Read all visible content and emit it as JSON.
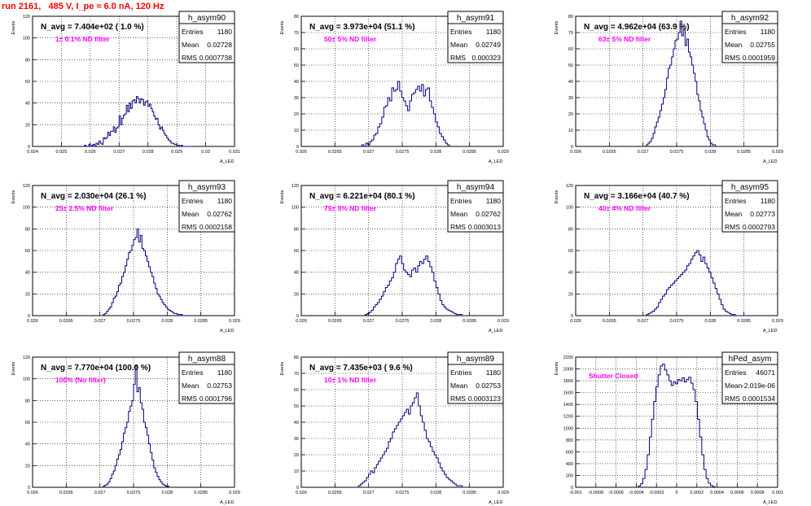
{
  "title": "run 2161,   485 V, I_pe ≈ 6.0 nA, 120 Hz",
  "colors": {
    "hist_line": "#000080",
    "title_red": "#ff0000",
    "magenta": "#ff00ff",
    "grid": "#000000"
  },
  "chart_data": [
    {
      "type": "histogram",
      "name": "h_asym90",
      "stats": {
        "entries": "1180",
        "mean": "0.02728",
        "rms": "0.0007738"
      },
      "label": "N_avg = 7.404e+02 ( 1.0 %)",
      "sublabel": "1± 0.1% ND filter",
      "ylabel": "Events",
      "xlabel": "A_LED",
      "xlim": [
        0.024,
        0.031
      ],
      "ylim": [
        0,
        120
      ],
      "xticks": [
        "0.024",
        "0.025",
        "0.026",
        "0.027",
        "0.028",
        "0.029",
        "0.03",
        "0.031"
      ],
      "yticks": [
        "0",
        "20",
        "40",
        "60",
        "80",
        "100",
        "120"
      ],
      "bins": [
        0.0255,
        0.0295
      ],
      "values": [
        0,
        0,
        0,
        0,
        0,
        0,
        1,
        0,
        0,
        2,
        0,
        1,
        2,
        0,
        3,
        2,
        5,
        3,
        2,
        8,
        7,
        8,
        13,
        10,
        14,
        14,
        18,
        13,
        17,
        18,
        28,
        20,
        26,
        29,
        30,
        38,
        32,
        40,
        35,
        42,
        43,
        40,
        46,
        44,
        40,
        44,
        43,
        38,
        41,
        42,
        37,
        39,
        35,
        32,
        28,
        25,
        26,
        20,
        16,
        18,
        15,
        12,
        10,
        8,
        6,
        5,
        3,
        3,
        2,
        2,
        1,
        1,
        0,
        1,
        0,
        0,
        0,
        0,
        0,
        0
      ]
    },
    {
      "type": "histogram",
      "name": "h_asym91",
      "stats": {
        "entries": "1180",
        "mean": "0.02749",
        "rms": "0.000323"
      },
      "label": "N_avg = 3.973e+04 (51.1 %)",
      "sublabel": "50± 5% ND filter",
      "ylabel": "Events",
      "xlabel": "A_LED",
      "xlim": [
        0.026,
        0.029
      ],
      "ylim": [
        0,
        80
      ],
      "xticks": [
        "0.026",
        "0.0265",
        "0.027",
        "0.0275",
        "0.028",
        "0.0285",
        "0.029"
      ],
      "yticks": [
        "0",
        "10",
        "20",
        "30",
        "40",
        "50",
        "60",
        "70",
        "80"
      ],
      "bins": [
        0.0269,
        0.0282
      ],
      "values": [
        1,
        0,
        2,
        1,
        3,
        4,
        7,
        8,
        12,
        14,
        18,
        24,
        25,
        30,
        28,
        36,
        34,
        35,
        40,
        34,
        30,
        28,
        25,
        22,
        28,
        32,
        33,
        35,
        37,
        34,
        38,
        31,
        35,
        36,
        28,
        24,
        20,
        15,
        12,
        8,
        6,
        4,
        2,
        1
      ]
    },
    {
      "type": "histogram",
      "name": "h_asym92",
      "stats": {
        "entries": "1180",
        "mean": "0.02755",
        "rms": "0.0001959"
      },
      "label": "N_avg = 4.962e+04 (63.9 %)",
      "sublabel": "63± 5% ND filter",
      "ylabel": "Events",
      "xlabel": "A_LED",
      "xlim": [
        0.026,
        0.029
      ],
      "ylim": [
        0,
        80
      ],
      "xticks": [
        "0.026",
        "0.0265",
        "0.027",
        "0.0275",
        "0.028",
        "0.0285",
        "0.029"
      ],
      "yticks": [
        "0",
        "10",
        "20",
        "30",
        "40",
        "50",
        "60",
        "70",
        "80"
      ],
      "bins": [
        0.02705,
        0.0281
      ],
      "values": [
        1,
        2,
        3,
        5,
        8,
        12,
        15,
        18,
        22,
        26,
        30,
        35,
        42,
        48,
        50,
        55,
        60,
        65,
        66,
        70,
        77,
        68,
        72,
        62,
        66,
        58,
        55,
        50,
        45,
        40,
        32,
        28,
        22,
        18,
        14,
        10,
        6,
        4,
        2,
        1,
        1,
        0
      ]
    },
    {
      "type": "histogram",
      "name": "h_asym93",
      "stats": {
        "entries": "1180",
        "mean": "0.02762",
        "rms": "0.0002158"
      },
      "label": "N_avg = 2.030e+04 (26.1 %)",
      "sublabel": "25± 2.5% ND filter",
      "ylabel": "Events",
      "xlabel": "A_LED",
      "xlim": [
        0.026,
        0.029
      ],
      "ylim": [
        0,
        120
      ],
      "xticks": [
        "0.026",
        "0.0265",
        "0.027",
        "0.0275",
        "0.028",
        "0.0285",
        "0.029"
      ],
      "yticks": [
        "0",
        "20",
        "40",
        "60",
        "80",
        "100",
        "120"
      ],
      "bins": [
        0.02705,
        0.0283
      ],
      "values": [
        1,
        2,
        4,
        6,
        8,
        12,
        16,
        18,
        22,
        28,
        30,
        36,
        40,
        46,
        52,
        58,
        60,
        65,
        70,
        72,
        80,
        68,
        74,
        62,
        60,
        55,
        50,
        45,
        40,
        36,
        30,
        25,
        20,
        18,
        15,
        12,
        10,
        8,
        6,
        5,
        4,
        3,
        2,
        2,
        1,
        1,
        1,
        0,
        0,
        0
      ]
    },
    {
      "type": "histogram",
      "name": "h_asym94",
      "stats": {
        "entries": "1180",
        "mean": "0.02762",
        "rms": "0.0003013"
      },
      "label": "N_avg = 6.221e+04 (80.1 %)",
      "sublabel": "79± 5% ND filter",
      "ylabel": "Events",
      "xlabel": "A_LED",
      "xlim": [
        0.026,
        0.029
      ],
      "ylim": [
        0,
        120
      ],
      "xticks": [
        "0.026",
        "0.0265",
        "0.027",
        "0.0275",
        "0.028",
        "0.0285",
        "0.029"
      ],
      "yticks": [
        "0",
        "20",
        "40",
        "60",
        "80",
        "100",
        "120"
      ],
      "bins": [
        0.02695,
        0.02845
      ],
      "values": [
        1,
        2,
        3,
        5,
        8,
        10,
        12,
        15,
        18,
        22,
        26,
        28,
        32,
        35,
        40,
        48,
        52,
        55,
        48,
        42,
        40,
        38,
        36,
        42,
        44,
        40,
        46,
        50,
        48,
        52,
        55,
        50,
        45,
        40,
        32,
        26,
        20,
        14,
        10,
        8,
        6,
        5,
        4,
        3,
        2,
        1,
        1,
        1,
        0,
        0
      ]
    },
    {
      "type": "histogram",
      "name": "h_asym95",
      "stats": {
        "entries": "1180",
        "mean": "0.02773",
        "rms": "0.0002793"
      },
      "label": "N_avg = 3.166e+04 (40.7 %)",
      "sublabel": "40± 4% ND filter",
      "ylabel": "Events",
      "xlabel": "A_LED",
      "xlim": [
        0.026,
        0.029
      ],
      "ylim": [
        0,
        120
      ],
      "xticks": [
        "0.026",
        "0.0265",
        "0.027",
        "0.0275",
        "0.028",
        "0.0285",
        "0.029"
      ],
      "yticks": [
        "0",
        "20",
        "40",
        "60",
        "80",
        "100",
        "120"
      ],
      "bins": [
        0.02705,
        0.02855
      ],
      "values": [
        1,
        2,
        3,
        4,
        6,
        8,
        12,
        15,
        18,
        20,
        24,
        26,
        28,
        30,
        32,
        34,
        36,
        38,
        40,
        42,
        46,
        48,
        52,
        55,
        58,
        60,
        56,
        50,
        54,
        48,
        44,
        40,
        35,
        30,
        25,
        20,
        15,
        10,
        6,
        4,
        3,
        2,
        1,
        1,
        0,
        0,
        0,
        0,
        0,
        0
      ]
    },
    {
      "type": "histogram",
      "name": "h_asym88",
      "stats": {
        "entries": "1180",
        "mean": "0.02753",
        "rms": "0.0001796"
      },
      "label": "N_avg = 7.770e+04 (100.0 %)",
      "sublabel": "100% (No filter)",
      "ylabel": "Events",
      "xlabel": "A_LED",
      "xlim": [
        0.026,
        0.029
      ],
      "ylim": [
        0,
        120
      ],
      "xticks": [
        "0.026",
        "0.0265",
        "0.027",
        "0.0275",
        "0.028",
        "0.0285",
        "0.029"
      ],
      "yticks": [
        "0",
        "20",
        "40",
        "60",
        "80",
        "100",
        "120"
      ],
      "bins": [
        0.02705,
        0.02805
      ],
      "values": [
        1,
        2,
        3,
        5,
        8,
        12,
        15,
        20,
        26,
        30,
        35,
        42,
        50,
        55,
        60,
        70,
        75,
        80,
        95,
        112,
        88,
        92,
        78,
        72,
        60,
        55,
        48,
        40,
        32,
        25,
        18,
        14,
        10,
        7,
        5,
        3,
        2,
        1,
        1,
        0
      ]
    },
    {
      "type": "histogram",
      "name": "h_asym89",
      "stats": {
        "entries": "1180",
        "mean": "0.02753",
        "rms": "0.0003123"
      },
      "label": "N_avg = 7.435e+03 ( 9.6 %)",
      "sublabel": "10± 1% ND filter",
      "ylabel": "Events",
      "xlabel": "A_LED",
      "xlim": [
        0.026,
        0.029
      ],
      "ylim": [
        0,
        80
      ],
      "xticks": [
        "0.026",
        "0.0265",
        "0.027",
        "0.0275",
        "0.028",
        "0.0285",
        "0.029"
      ],
      "yticks": [
        "0",
        "10",
        "20",
        "30",
        "40",
        "50",
        "60",
        "70",
        "80"
      ],
      "bins": [
        0.02685,
        0.02845
      ],
      "values": [
        1,
        2,
        3,
        4,
        6,
        8,
        10,
        9,
        12,
        14,
        16,
        18,
        20,
        22,
        24,
        28,
        30,
        34,
        36,
        38,
        40,
        42,
        44,
        46,
        48,
        45,
        50,
        52,
        55,
        58,
        50,
        44,
        40,
        35,
        30,
        28,
        25,
        22,
        20,
        18,
        15,
        12,
        10,
        8,
        6,
        5,
        4,
        3,
        2,
        1,
        1,
        1,
        0,
        0
      ]
    },
    {
      "type": "histogram",
      "name": "hPed_asym",
      "stats": {
        "entries": "46071",
        "mean": "-2.019e-06",
        "rms": "0.0001534"
      },
      "label": "",
      "sublabel": "Shutter Closed",
      "ylabel": "Events",
      "xlabel": "A_LED",
      "xlim": [
        -0.001,
        0.001
      ],
      "ylim": [
        0,
        2200
      ],
      "xticks": [
        "-0.001",
        "-0.0008",
        "-0.0006",
        "-0.0004",
        "-0.0002",
        "0",
        "0.0002",
        "0.0004",
        "0.0006",
        "0.0008",
        "0.001"
      ],
      "yticks": [
        "0",
        "200",
        "400",
        "600",
        "800",
        "1000",
        "1200",
        "1400",
        "1600",
        "1800",
        "2000",
        "2200"
      ],
      "bins": [
        -0.0004,
        0.0004
      ],
      "values": [
        0,
        20,
        60,
        150,
        300,
        550,
        850,
        1150,
        1450,
        1700,
        1900,
        2050,
        2080,
        1980,
        1900,
        1800,
        1720,
        1780,
        1750,
        1820,
        1800,
        1850,
        1780,
        1820,
        1860,
        1760,
        1650,
        1450,
        1150,
        850,
        550,
        300,
        150,
        70,
        30,
        10,
        0
      ]
    }
  ],
  "stats_labels": {
    "entries": "Entries",
    "mean": "Mean",
    "rms": "RMS"
  }
}
